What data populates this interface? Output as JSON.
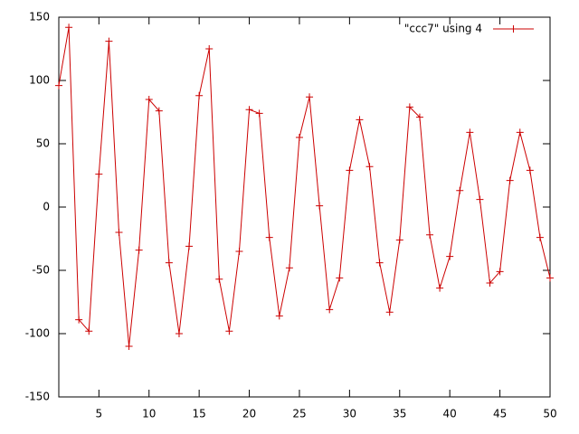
{
  "chart_data": {
    "type": "line",
    "x": [
      1,
      2,
      3,
      4,
      5,
      6,
      7,
      8,
      9,
      10,
      11,
      12,
      13,
      14,
      15,
      16,
      17,
      18,
      19,
      20,
      21,
      22,
      23,
      24,
      25,
      26,
      27,
      28,
      29,
      30,
      31,
      32,
      33,
      34,
      35,
      36,
      37,
      38,
      39,
      40,
      41,
      42,
      43,
      44,
      45,
      46,
      47,
      48,
      49,
      50
    ],
    "series": [
      {
        "name": "\"ccc7\" using 4",
        "color": "#cc0000",
        "values": [
          96,
          142,
          -89,
          -98,
          26,
          131,
          -20,
          -110,
          -34,
          85,
          76,
          -44,
          -100,
          -31,
          88,
          125,
          -57,
          -98,
          -35,
          77,
          74,
          -24,
          -86,
          -48,
          55,
          87,
          1,
          -81,
          -56,
          29,
          69,
          32,
          -44,
          -83,
          -26,
          79,
          71,
          -22,
          -64,
          -39,
          13,
          59,
          6,
          -60,
          -51,
          21,
          59,
          29,
          -24,
          -56
        ]
      }
    ],
    "xlim": [
      1,
      50
    ],
    "xticks": [
      5,
      10,
      15,
      20,
      25,
      30,
      35,
      40,
      45,
      50
    ],
    "ylim": [
      -150,
      150
    ],
    "yticks": [
      -150,
      -100,
      -50,
      0,
      50,
      100,
      150
    ],
    "legend": "top-right"
  }
}
